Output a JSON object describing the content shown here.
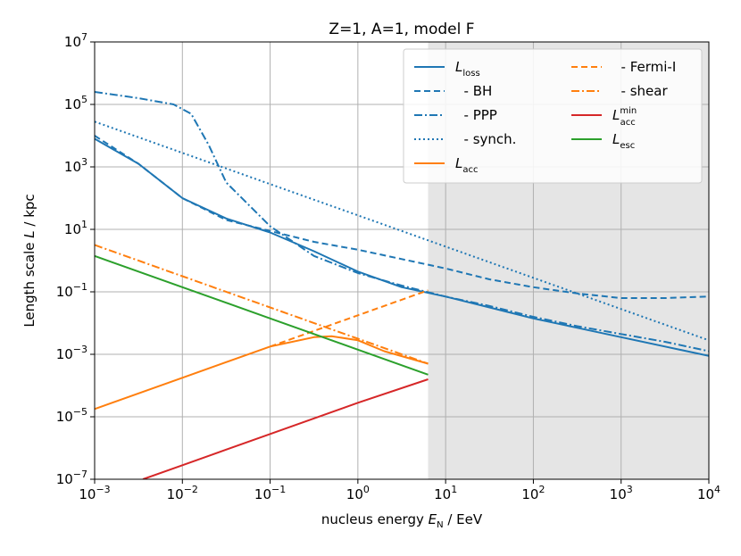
{
  "chart_data": {
    "type": "line",
    "title": "Z=1, A=1, model F",
    "xlabel": {
      "prefix": "nucleus energy ",
      "var": "E",
      "sub": "N",
      "unit": " / EeV"
    },
    "ylabel": {
      "prefix": "Length scale ",
      "var": "L",
      "unit": " / kpc"
    },
    "xscale": "log",
    "yscale": "log",
    "xlim_exp": [
      -3,
      4
    ],
    "ylim_exp": [
      -7,
      7
    ],
    "x_ticks": [
      {
        "exp": -3,
        "base": "10",
        "sup": "−3"
      },
      {
        "exp": -2,
        "base": "10",
        "sup": "−2"
      },
      {
        "exp": -1,
        "base": "10",
        "sup": "−1"
      },
      {
        "exp": 0,
        "base": "10",
        "sup": "0"
      },
      {
        "exp": 1,
        "base": "10",
        "sup": "1"
      },
      {
        "exp": 2,
        "base": "10",
        "sup": "2"
      },
      {
        "exp": 3,
        "base": "10",
        "sup": "3"
      },
      {
        "exp": 4,
        "base": "10",
        "sup": "4"
      }
    ],
    "y_ticks": [
      {
        "exp": -7,
        "base": "10",
        "sup": "−7"
      },
      {
        "exp": -5,
        "base": "10",
        "sup": "−5"
      },
      {
        "exp": -3,
        "base": "10",
        "sup": "−3"
      },
      {
        "exp": -1,
        "base": "10",
        "sup": "−1"
      },
      {
        "exp": 1,
        "base": "10",
        "sup": "1"
      },
      {
        "exp": 3,
        "base": "10",
        "sup": "3"
      },
      {
        "exp": 5,
        "base": "10",
        "sup": "5"
      },
      {
        "exp": 7,
        "base": "10",
        "sup": "7"
      }
    ],
    "grid": true,
    "shaded_region_x_exp": [
      0.8,
      4
    ],
    "shaded_color": "#e5e5e5",
    "series": [
      {
        "name": "L_loss",
        "label_main": "L",
        "label_sub": "loss",
        "color": "#1f77b4",
        "style": "solid",
        "points": [
          [
            -3,
            3.9
          ],
          [
            -2.5,
            3.1
          ],
          [
            -2,
            2.0
          ],
          [
            -1.5,
            1.35
          ],
          [
            -1,
            0.9
          ],
          [
            -0.5,
            0.3
          ],
          [
            0,
            -0.35
          ],
          [
            0.5,
            -0.85
          ],
          [
            1,
            -1.15
          ],
          [
            1.5,
            -1.5
          ],
          [
            2,
            -1.85
          ],
          [
            2.5,
            -2.15
          ],
          [
            3,
            -2.45
          ],
          [
            3.5,
            -2.75
          ],
          [
            4,
            -3.05
          ]
        ]
      },
      {
        "name": "BH",
        "label_main": "  - BH",
        "color": "#1f77b4",
        "style": "dashed",
        "points": [
          [
            -3,
            4.0
          ],
          [
            -2.5,
            3.1
          ],
          [
            -2,
            2.0
          ],
          [
            -1.5,
            1.3
          ],
          [
            -1,
            0.95
          ],
          [
            -0.5,
            0.6
          ],
          [
            0,
            0.35
          ],
          [
            0.5,
            0.05
          ],
          [
            1,
            -0.25
          ],
          [
            1.5,
            -0.6
          ],
          [
            2,
            -0.85
          ],
          [
            2.5,
            -1.05
          ],
          [
            3,
            -1.2
          ],
          [
            3.5,
            -1.2
          ],
          [
            4,
            -1.15
          ]
        ]
      },
      {
        "name": "PPP",
        "label_main": "  - PPP",
        "color": "#1f77b4",
        "style": "dashdot",
        "points": [
          [
            -3,
            5.4
          ],
          [
            -2.5,
            5.2
          ],
          [
            -2.1,
            5.0
          ],
          [
            -1.9,
            4.7
          ],
          [
            -1.7,
            3.7
          ],
          [
            -1.5,
            2.5
          ],
          [
            -1,
            1.1
          ],
          [
            -0.5,
            0.15
          ],
          [
            0,
            -0.4
          ],
          [
            0.5,
            -0.8
          ],
          [
            1,
            -1.15
          ],
          [
            1.5,
            -1.45
          ],
          [
            2,
            -1.8
          ],
          [
            2.5,
            -2.1
          ],
          [
            3,
            -2.35
          ],
          [
            3.5,
            -2.6
          ],
          [
            4,
            -2.9
          ]
        ]
      },
      {
        "name": "synch.",
        "label_main": "  - synch.",
        "color": "#1f77b4",
        "style": "dotted",
        "points": [
          [
            -3,
            4.45
          ],
          [
            -2,
            3.45
          ],
          [
            -1,
            2.45
          ],
          [
            0,
            1.45
          ],
          [
            1,
            0.45
          ],
          [
            2,
            -0.55
          ],
          [
            3,
            -1.55
          ],
          [
            4,
            -2.55
          ]
        ]
      },
      {
        "name": "L_acc",
        "label_main": "L",
        "label_sub": "acc",
        "color": "#ff7f0e",
        "style": "solid",
        "points": [
          [
            -3,
            -4.75
          ],
          [
            -2,
            -3.75
          ],
          [
            -1,
            -2.75
          ],
          [
            -0.5,
            -2.45
          ],
          [
            -0.3,
            -2.42
          ],
          [
            0,
            -2.55
          ],
          [
            0.3,
            -2.9
          ],
          [
            0.8,
            -3.3
          ]
        ]
      },
      {
        "name": "Fermi-I",
        "label_main": "  - Fermi-I",
        "color": "#ff7f0e",
        "style": "dashed",
        "points": [
          [
            -1,
            -2.75
          ],
          [
            0,
            -1.75
          ],
          [
            0.8,
            -0.95
          ]
        ]
      },
      {
        "name": "shear",
        "label_main": "  - shear",
        "color": "#ff7f0e",
        "style": "dashdot",
        "points": [
          [
            -3,
            0.5
          ],
          [
            -2,
            -0.5
          ],
          [
            -1,
            -1.5
          ],
          [
            0,
            -2.5
          ],
          [
            0.8,
            -3.3
          ]
        ]
      },
      {
        "name": "L_acc^min",
        "label_main": "L",
        "label_sub": "acc",
        "label_sup": "min",
        "color": "#d62728",
        "style": "solid",
        "points": [
          [
            -2.45,
            -7.0
          ],
          [
            -2,
            -6.55
          ],
          [
            -1,
            -5.55
          ],
          [
            0,
            -4.55
          ],
          [
            0.8,
            -3.8
          ]
        ]
      },
      {
        "name": "L_esc",
        "label_main": "L",
        "label_sub": "esc",
        "color": "#2ca02c",
        "style": "solid",
        "points": [
          [
            -3,
            0.15
          ],
          [
            -2,
            -0.85
          ],
          [
            -1,
            -1.85
          ],
          [
            0,
            -2.85
          ],
          [
            0.8,
            -3.65
          ]
        ]
      }
    ],
    "legend_position": "top-right"
  }
}
